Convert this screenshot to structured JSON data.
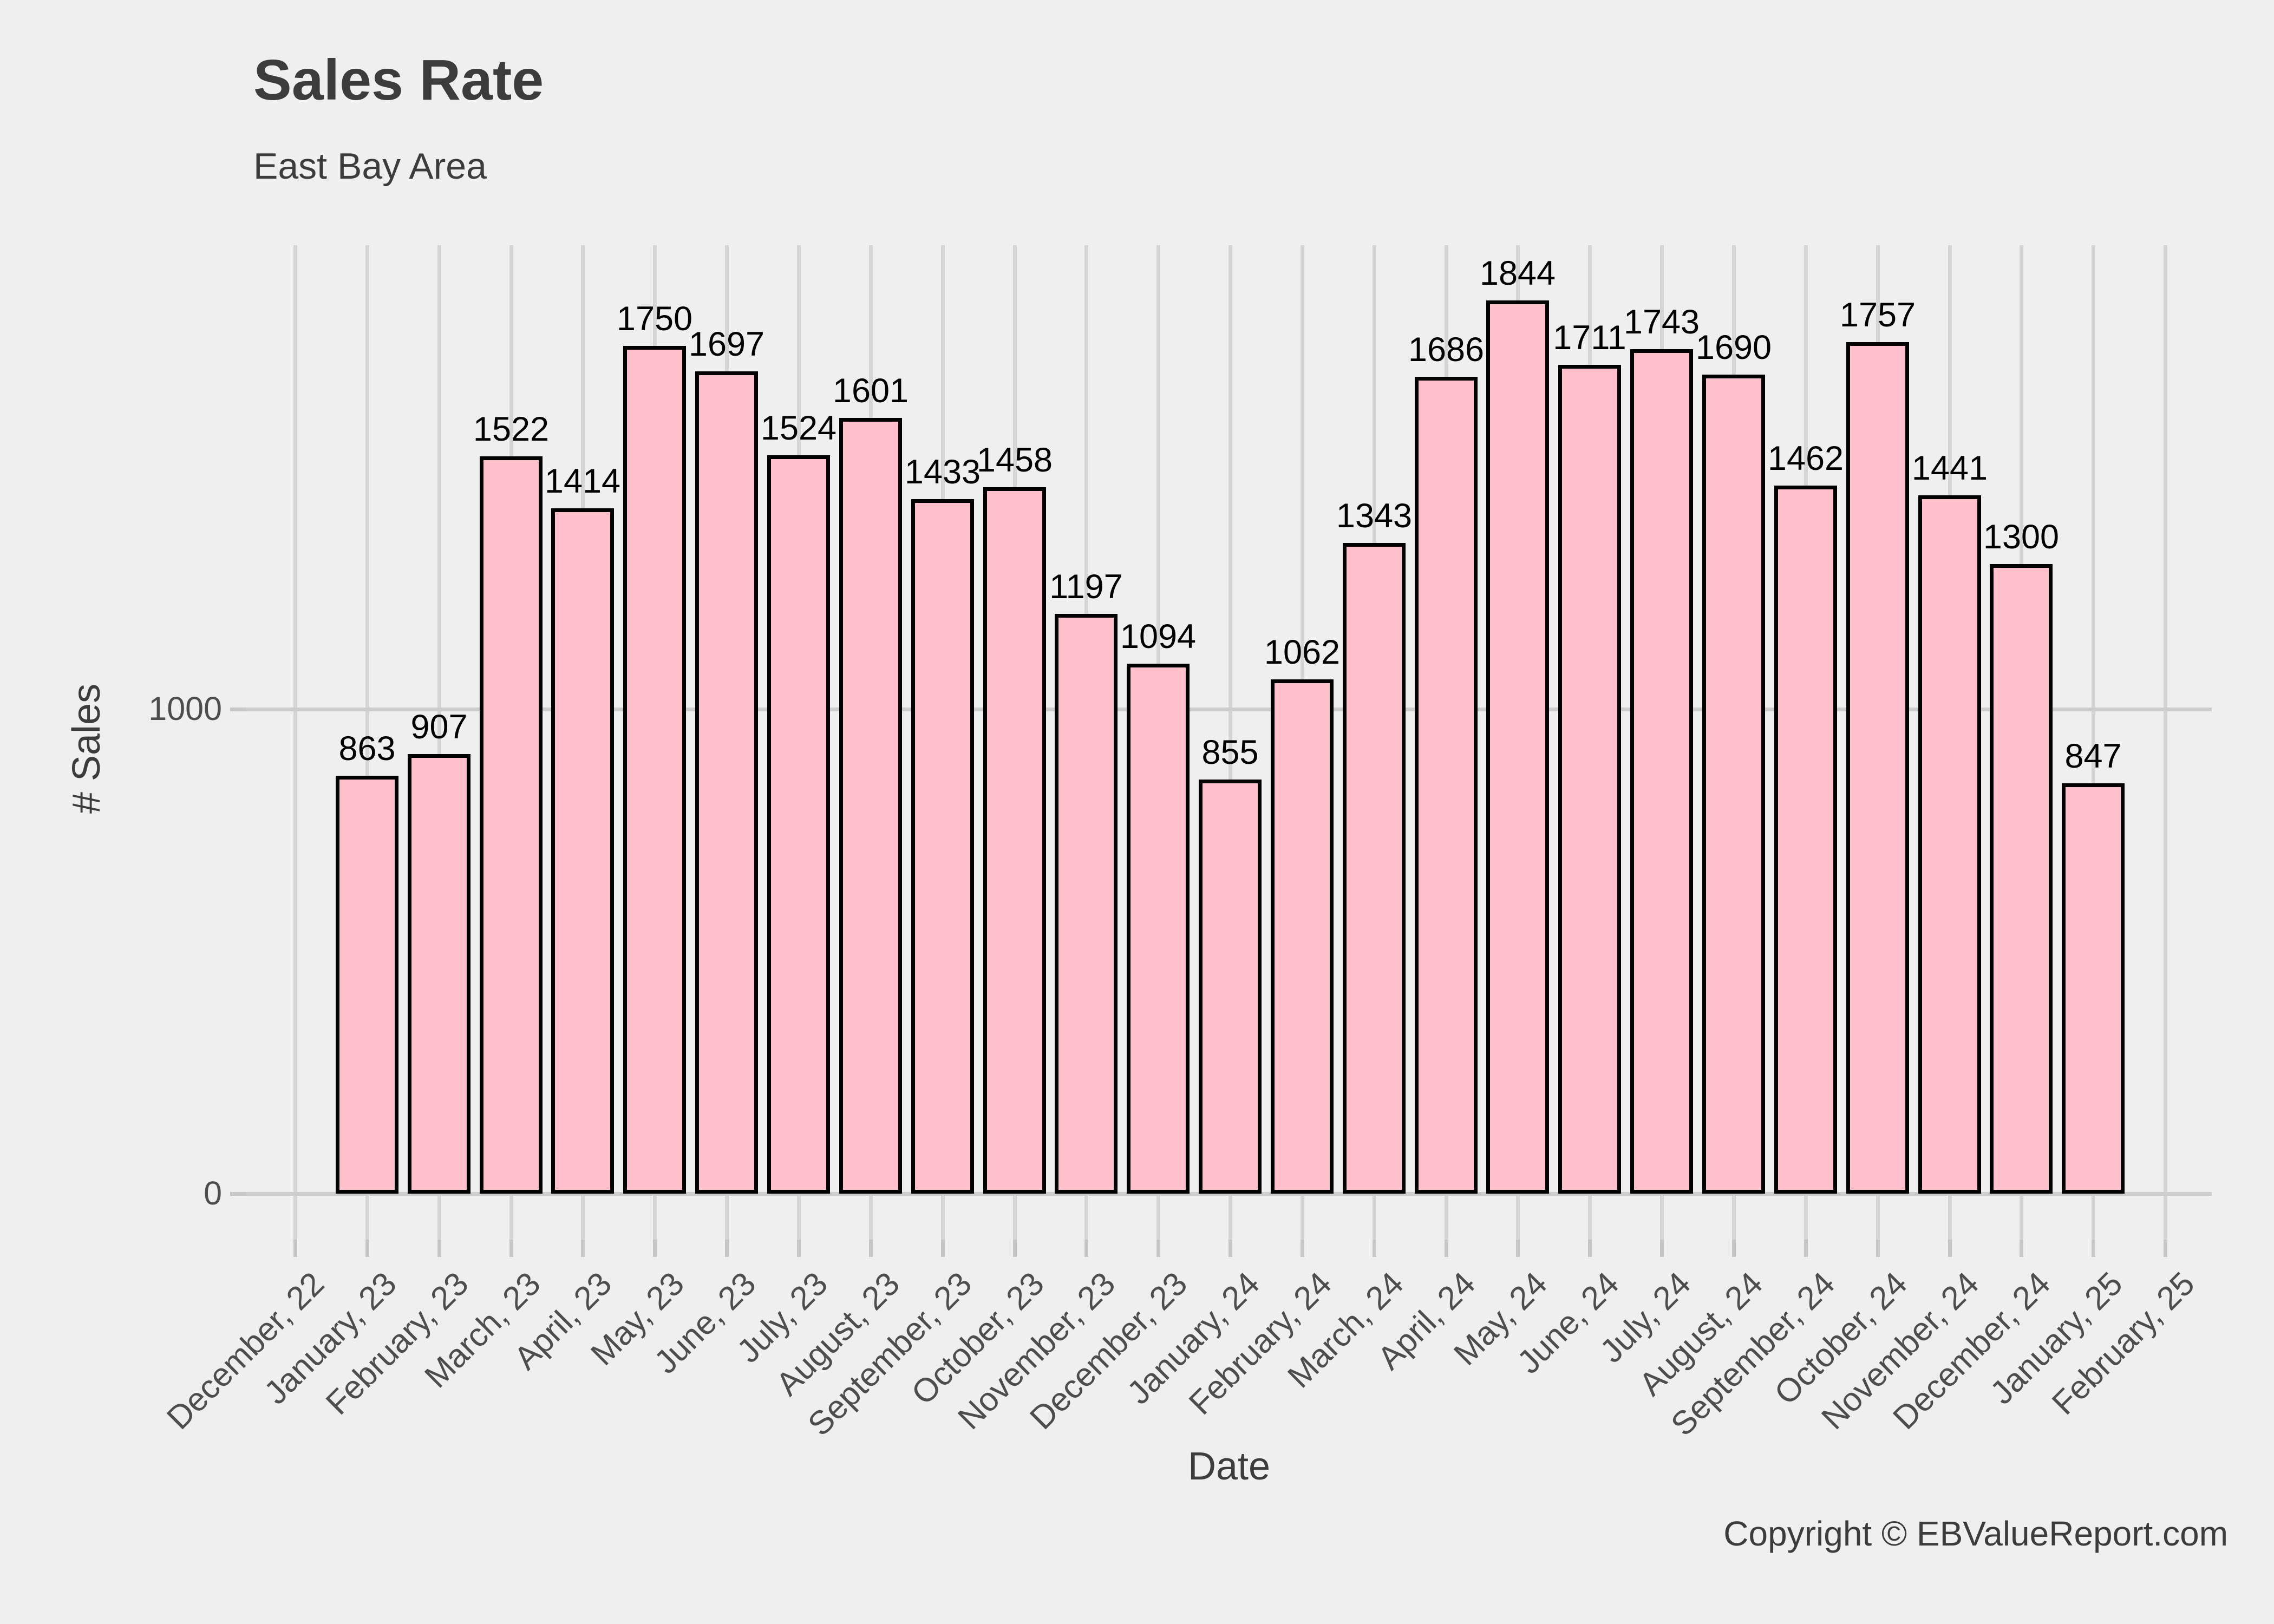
{
  "header": {
    "title": "Sales Rate",
    "subtitle": "East Bay Area"
  },
  "footer": {
    "copyright": "Copyright © EBValueReport.com"
  },
  "chart_data": {
    "type": "bar",
    "title": "Sales Rate",
    "subtitle": "East Bay Area",
    "xlabel": "Date",
    "ylabel": "# Sales",
    "categories": [
      "December, 22",
      "January, 23",
      "February, 23",
      "March, 23",
      "April, 23",
      "May, 23",
      "June, 23",
      "July, 23",
      "August, 23",
      "September, 23",
      "October, 23",
      "November, 23",
      "December, 23",
      "January, 24",
      "February, 24",
      "March, 24",
      "April, 24",
      "May, 24",
      "June, 24",
      "July, 24",
      "August, 24",
      "September, 24",
      "October, 24",
      "November, 24",
      "December, 24",
      "January, 25",
      "February, 25"
    ],
    "series": [
      {
        "name": "# Sales",
        "values": [
          null,
          863,
          907,
          1522,
          1414,
          1750,
          1697,
          1524,
          1601,
          1433,
          1458,
          1197,
          1094,
          855,
          1062,
          1343,
          1686,
          1844,
          1711,
          1743,
          1690,
          1462,
          1757,
          1441,
          1300,
          847,
          null
        ]
      }
    ],
    "value_labels": true,
    "yticks": [
      0,
      1000
    ],
    "ylim": [
      0,
      1936
    ],
    "x_tick_angle_deg": 45,
    "grid": "major-only",
    "legend_position": "none",
    "bar_fill_color": "#FFC0CB",
    "bar_border_color": "#000000",
    "background_color": "#EFEFEF",
    "gridline_color": "#D5D5D5"
  }
}
